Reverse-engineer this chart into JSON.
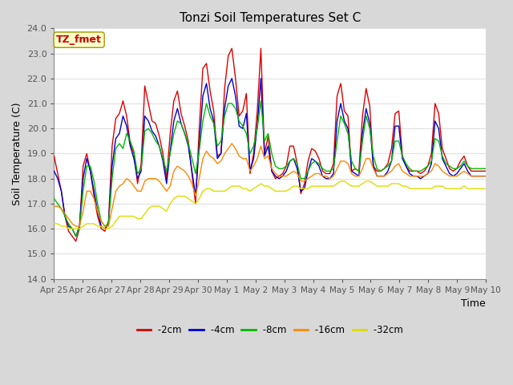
{
  "title": "Tonzi Soil Temperatures Set C",
  "xlabel": "Time",
  "ylabel": "Soil Temperature (C)",
  "ylim": [
    14.0,
    24.0
  ],
  "yticks": [
    14.0,
    15.0,
    16.0,
    17.0,
    18.0,
    19.0,
    20.0,
    21.0,
    22.0,
    23.0,
    24.0
  ],
  "xtick_labels": [
    "Apr 25",
    "Apr 26",
    "Apr 27",
    "Apr 28",
    "Apr 29",
    "Apr 30",
    "May 1",
    "May 2",
    "May 3",
    "May 4",
    "May 5",
    "May 6",
    "May 7",
    "May 8",
    "May 9",
    "May 10"
  ],
  "annotation_text": "TZ_fmet",
  "annotation_bg": "#ffffcc",
  "annotation_color": "#cc0000",
  "colors": {
    "-2cm": "#dd0000",
    "-4cm": "#0000cc",
    "-8cm": "#00bb00",
    "-16cm": "#ff8800",
    "-32cm": "#dddd00"
  },
  "series_names": [
    "-2cm",
    "-4cm",
    "-8cm",
    "-16cm",
    "-32cm"
  ],
  "fig_bg": "#d8d8d8",
  "plot_bg": "#ffffff",
  "grid_color": "#e0e0e0",
  "t_2cm": [
    18.9,
    18.2,
    17.5,
    16.5,
    15.9,
    15.7,
    15.5,
    16.0,
    18.5,
    19.0,
    18.3,
    17.3,
    16.5,
    16.0,
    15.9,
    16.3,
    19.3,
    20.4,
    20.6,
    21.1,
    20.5,
    19.4,
    19.0,
    17.8,
    18.6,
    21.7,
    21.0,
    20.3,
    20.2,
    19.7,
    19.0,
    18.0,
    19.8,
    21.1,
    21.5,
    20.6,
    20.1,
    19.5,
    18.2,
    17.0,
    20.0,
    22.4,
    22.6,
    21.5,
    20.7,
    18.9,
    19.0,
    21.6,
    22.9,
    23.2,
    22.0,
    20.5,
    20.7,
    21.4,
    18.2,
    19.0,
    20.7,
    23.2,
    19.0,
    19.7,
    18.3,
    18.0,
    18.1,
    18.2,
    18.5,
    19.3,
    19.3,
    18.6,
    17.4,
    17.8,
    18.7,
    19.2,
    19.1,
    18.8,
    18.3,
    18.2,
    18.2,
    18.6,
    21.3,
    21.8,
    20.7,
    20.5,
    18.3,
    18.4,
    18.3,
    20.5,
    21.6,
    20.9,
    18.5,
    18.3,
    18.3,
    18.4,
    18.6,
    19.2,
    20.6,
    20.7,
    18.9,
    18.5,
    18.3,
    18.3,
    18.3,
    18.2,
    18.3,
    18.5,
    19.0,
    21.0,
    20.6,
    19.2,
    18.8,
    18.4,
    18.3,
    18.4,
    18.7,
    18.9,
    18.5,
    18.3,
    18.3,
    18.3,
    18.3,
    18.3
  ],
  "t_4cm": [
    18.3,
    18.0,
    17.5,
    16.5,
    16.1,
    16.0,
    15.7,
    16.1,
    18.0,
    18.8,
    18.3,
    17.5,
    16.7,
    16.1,
    16.0,
    16.2,
    18.5,
    19.6,
    19.8,
    20.5,
    20.1,
    19.3,
    18.8,
    18.0,
    18.3,
    20.5,
    20.3,
    19.9,
    19.7,
    19.3,
    18.7,
    17.8,
    19.1,
    20.3,
    20.8,
    20.2,
    19.8,
    19.3,
    18.3,
    17.3,
    19.3,
    21.3,
    21.8,
    20.8,
    20.3,
    18.8,
    19.0,
    20.8,
    21.7,
    22.0,
    21.3,
    20.1,
    20.0,
    20.6,
    18.3,
    18.8,
    20.1,
    22.0,
    18.9,
    19.3,
    18.3,
    18.1,
    18.0,
    18.1,
    18.3,
    18.7,
    18.8,
    18.4,
    17.5,
    17.6,
    18.3,
    18.8,
    18.7,
    18.5,
    18.1,
    18.0,
    18.0,
    18.2,
    20.3,
    21.0,
    20.3,
    20.0,
    18.3,
    18.2,
    18.1,
    19.8,
    20.8,
    20.2,
    18.5,
    18.1,
    18.1,
    18.1,
    18.3,
    18.7,
    20.1,
    20.1,
    18.8,
    18.5,
    18.2,
    18.1,
    18.1,
    18.0,
    18.1,
    18.2,
    18.6,
    20.3,
    20.0,
    18.8,
    18.5,
    18.2,
    18.1,
    18.2,
    18.4,
    18.6,
    18.3,
    18.1,
    18.1,
    18.1,
    18.1,
    18.1
  ],
  "t_8cm": [
    17.2,
    17.0,
    16.8,
    16.5,
    16.2,
    16.0,
    15.7,
    16.0,
    17.5,
    18.5,
    18.5,
    17.9,
    17.0,
    16.3,
    16.1,
    16.2,
    18.0,
    19.2,
    19.4,
    19.2,
    19.8,
    19.5,
    19.1,
    18.2,
    18.4,
    19.9,
    20.0,
    19.8,
    19.5,
    19.3,
    18.8,
    18.3,
    19.0,
    19.8,
    20.3,
    20.2,
    19.8,
    19.4,
    18.8,
    18.2,
    19.1,
    20.3,
    21.0,
    20.5,
    20.2,
    19.3,
    19.5,
    20.5,
    21.0,
    21.0,
    20.8,
    20.3,
    20.1,
    19.8,
    19.0,
    19.3,
    20.0,
    21.1,
    19.5,
    19.8,
    19.0,
    18.5,
    18.4,
    18.4,
    18.5,
    18.7,
    18.8,
    18.6,
    18.0,
    18.0,
    18.3,
    18.6,
    18.7,
    18.6,
    18.4,
    18.3,
    18.3,
    18.4,
    19.5,
    20.5,
    20.2,
    19.8,
    18.7,
    18.4,
    18.3,
    19.5,
    20.5,
    20.0,
    18.9,
    18.4,
    18.3,
    18.4,
    18.5,
    18.7,
    19.5,
    19.5,
    18.9,
    18.6,
    18.4,
    18.3,
    18.3,
    18.3,
    18.4,
    18.5,
    18.7,
    19.6,
    19.5,
    18.9,
    18.6,
    18.5,
    18.4,
    18.4,
    18.5,
    18.7,
    18.5,
    18.4,
    18.4,
    18.4,
    18.4,
    18.4
  ],
  "t_16cm": [
    16.9,
    16.9,
    16.8,
    16.6,
    16.4,
    16.2,
    16.1,
    16.1,
    16.7,
    17.5,
    17.5,
    17.2,
    16.7,
    16.3,
    16.1,
    16.1,
    16.8,
    17.5,
    17.7,
    17.8,
    18.0,
    17.9,
    17.7,
    17.5,
    17.5,
    17.9,
    18.0,
    18.0,
    18.0,
    17.9,
    17.7,
    17.5,
    17.7,
    18.3,
    18.5,
    18.4,
    18.3,
    18.1,
    17.8,
    17.3,
    18.0,
    18.8,
    19.1,
    18.9,
    18.8,
    18.6,
    18.7,
    19.0,
    19.2,
    19.4,
    19.2,
    18.9,
    18.8,
    18.8,
    18.3,
    18.5,
    18.8,
    19.3,
    18.8,
    18.9,
    18.4,
    18.2,
    18.1,
    18.1,
    18.1,
    18.2,
    18.3,
    18.2,
    17.9,
    17.9,
    18.0,
    18.1,
    18.2,
    18.2,
    18.1,
    18.1,
    18.0,
    18.1,
    18.4,
    18.7,
    18.7,
    18.6,
    18.2,
    18.1,
    18.1,
    18.4,
    18.8,
    18.8,
    18.4,
    18.1,
    18.1,
    18.1,
    18.2,
    18.3,
    18.5,
    18.6,
    18.3,
    18.2,
    18.1,
    18.1,
    18.1,
    18.1,
    18.1,
    18.2,
    18.3,
    18.6,
    18.5,
    18.3,
    18.2,
    18.1,
    18.1,
    18.1,
    18.2,
    18.3,
    18.2,
    18.1,
    18.1,
    18.1,
    18.1,
    18.1
  ],
  "t_32cm": [
    16.2,
    16.2,
    16.1,
    16.1,
    16.0,
    16.0,
    16.0,
    16.0,
    16.1,
    16.2,
    16.2,
    16.2,
    16.1,
    16.1,
    16.0,
    16.0,
    16.1,
    16.3,
    16.5,
    16.5,
    16.5,
    16.5,
    16.5,
    16.4,
    16.4,
    16.6,
    16.8,
    16.9,
    16.9,
    16.9,
    16.8,
    16.7,
    17.0,
    17.2,
    17.3,
    17.3,
    17.3,
    17.2,
    17.1,
    17.0,
    17.2,
    17.5,
    17.6,
    17.6,
    17.5,
    17.5,
    17.5,
    17.5,
    17.6,
    17.7,
    17.7,
    17.7,
    17.6,
    17.6,
    17.5,
    17.6,
    17.7,
    17.8,
    17.7,
    17.7,
    17.6,
    17.5,
    17.5,
    17.5,
    17.5,
    17.6,
    17.7,
    17.7,
    17.6,
    17.6,
    17.6,
    17.7,
    17.7,
    17.7,
    17.7,
    17.7,
    17.7,
    17.7,
    17.8,
    17.9,
    17.9,
    17.8,
    17.7,
    17.7,
    17.7,
    17.8,
    17.9,
    17.9,
    17.8,
    17.7,
    17.7,
    17.7,
    17.7,
    17.8,
    17.8,
    17.8,
    17.7,
    17.7,
    17.6,
    17.6,
    17.6,
    17.6,
    17.6,
    17.6,
    17.6,
    17.7,
    17.7,
    17.7,
    17.6,
    17.6,
    17.6,
    17.6,
    17.6,
    17.7,
    17.6,
    17.6,
    17.6,
    17.6,
    17.6,
    17.6
  ]
}
